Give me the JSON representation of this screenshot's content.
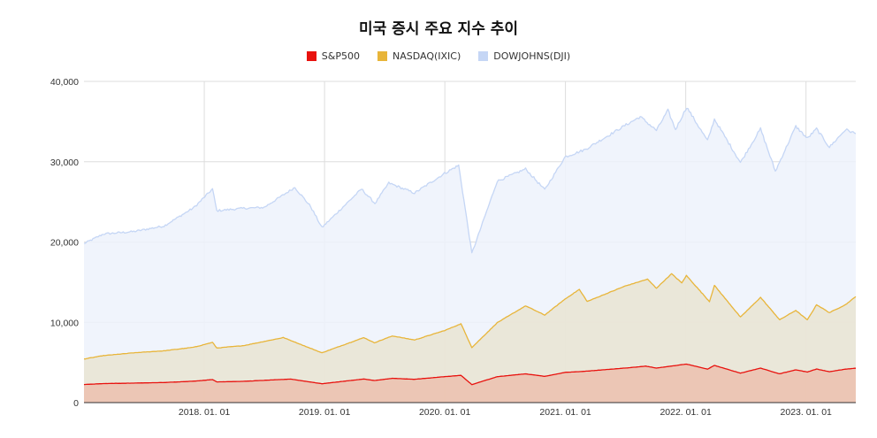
{
  "chart_data": {
    "type": "area",
    "title": "미국 증시 주요 지수 추이",
    "xlabel": "",
    "ylabel": "",
    "x_ticks": [
      "2018. 01. 01",
      "2019. 01. 01",
      "2020. 01. 01",
      "2021. 01. 01",
      "2022. 01. 01",
      "2023. 01. 01"
    ],
    "y_ticks": [
      "0",
      "10,000",
      "20,000",
      "30,000",
      "40,000"
    ],
    "ylim": [
      0,
      40000
    ],
    "xlim": [
      "2017-01-01",
      "2023-06-01"
    ],
    "grid": true,
    "legend_position": "top",
    "stacked": false,
    "series": [
      {
        "name": "S&P500",
        "color": "#e8120e",
        "fill": "#ecc0ae",
        "points": [
          [
            "2017-01-01",
            2250
          ],
          [
            "2017-03-01",
            2370
          ],
          [
            "2017-06-01",
            2430
          ],
          [
            "2017-09-01",
            2500
          ],
          [
            "2017-12-01",
            2670
          ],
          [
            "2018-01-26",
            2870
          ],
          [
            "2018-02-08",
            2580
          ],
          [
            "2018-05-01",
            2650
          ],
          [
            "2018-09-20",
            2930
          ],
          [
            "2018-12-24",
            2350
          ],
          [
            "2019-04-30",
            2940
          ],
          [
            "2019-06-01",
            2750
          ],
          [
            "2019-07-26",
            3020
          ],
          [
            "2019-10-01",
            2900
          ],
          [
            "2019-12-31",
            3230
          ],
          [
            "2020-02-19",
            3390
          ],
          [
            "2020-03-23",
            2240
          ],
          [
            "2020-06-08",
            3230
          ],
          [
            "2020-09-02",
            3580
          ],
          [
            "2020-10-30",
            3270
          ],
          [
            "2020-12-31",
            3760
          ],
          [
            "2021-03-01",
            3900
          ],
          [
            "2021-06-30",
            4300
          ],
          [
            "2021-09-02",
            4540
          ],
          [
            "2021-10-04",
            4300
          ],
          [
            "2022-01-03",
            4800
          ],
          [
            "2022-03-08",
            4170
          ],
          [
            "2022-03-29",
            4630
          ],
          [
            "2022-06-16",
            3670
          ],
          [
            "2022-08-16",
            4300
          ],
          [
            "2022-10-12",
            3580
          ],
          [
            "2022-12-01",
            4080
          ],
          [
            "2023-01-05",
            3810
          ],
          [
            "2023-02-02",
            4180
          ],
          [
            "2023-03-13",
            3850
          ],
          [
            "2023-05-01",
            4170
          ],
          [
            "2023-06-01",
            4280
          ]
        ]
      },
      {
        "name": "NASDAQ(IXIC)",
        "color": "#e8b53a",
        "fill": "#e9e4d2",
        "points": [
          [
            "2017-01-01",
            5430
          ],
          [
            "2017-03-01",
            5850
          ],
          [
            "2017-06-01",
            6200
          ],
          [
            "2017-09-01",
            6450
          ],
          [
            "2017-12-01",
            6900
          ],
          [
            "2018-01-26",
            7500
          ],
          [
            "2018-02-08",
            6800
          ],
          [
            "2018-05-01",
            7100
          ],
          [
            "2018-08-29",
            8100
          ],
          [
            "2018-12-24",
            6200
          ],
          [
            "2019-04-30",
            8100
          ],
          [
            "2019-06-01",
            7450
          ],
          [
            "2019-07-26",
            8300
          ],
          [
            "2019-10-01",
            7800
          ],
          [
            "2019-12-31",
            8970
          ],
          [
            "2020-02-19",
            9820
          ],
          [
            "2020-03-23",
            6860
          ],
          [
            "2020-06-08",
            9950
          ],
          [
            "2020-09-02",
            12050
          ],
          [
            "2020-10-30",
            10900
          ],
          [
            "2020-12-31",
            12900
          ],
          [
            "2021-02-12",
            14100
          ],
          [
            "2021-03-08",
            12600
          ],
          [
            "2021-06-30",
            14500
          ],
          [
            "2021-09-07",
            15370
          ],
          [
            "2021-10-04",
            14250
          ],
          [
            "2021-11-19",
            16050
          ],
          [
            "2021-12-20",
            14900
          ],
          [
            "2022-01-03",
            15830
          ],
          [
            "2022-03-14",
            12580
          ],
          [
            "2022-03-29",
            14600
          ],
          [
            "2022-06-16",
            10650
          ],
          [
            "2022-08-16",
            13100
          ],
          [
            "2022-10-13",
            10320
          ],
          [
            "2022-12-01",
            11480
          ],
          [
            "2023-01-05",
            10300
          ],
          [
            "2023-02-02",
            12200
          ],
          [
            "2023-03-13",
            11200
          ],
          [
            "2023-05-01",
            12200
          ],
          [
            "2023-06-01",
            13200
          ]
        ]
      },
      {
        "name": "DOWJOHNS(DJI)",
        "color": "#c5d6f5",
        "fill": "#edf2fc",
        "points": [
          [
            "2017-01-01",
            19800
          ],
          [
            "2017-03-01",
            21000
          ],
          [
            "2017-06-01",
            21300
          ],
          [
            "2017-09-01",
            22000
          ],
          [
            "2017-12-01",
            24300
          ],
          [
            "2018-01-26",
            26600
          ],
          [
            "2018-02-08",
            23900
          ],
          [
            "2018-05-01",
            24200
          ],
          [
            "2018-07-01",
            24300
          ],
          [
            "2018-10-03",
            26800
          ],
          [
            "2018-11-20",
            24400
          ],
          [
            "2018-12-24",
            21800
          ],
          [
            "2019-04-23",
            26600
          ],
          [
            "2019-06-03",
            24800
          ],
          [
            "2019-07-15",
            27350
          ],
          [
            "2019-10-01",
            26100
          ],
          [
            "2019-12-31",
            28540
          ],
          [
            "2020-02-12",
            29550
          ],
          [
            "2020-03-23",
            18590
          ],
          [
            "2020-06-08",
            27570
          ],
          [
            "2020-09-02",
            29100
          ],
          [
            "2020-10-30",
            26500
          ],
          [
            "2020-12-31",
            30600
          ],
          [
            "2021-03-01",
            31500
          ],
          [
            "2021-06-30",
            34500
          ],
          [
            "2021-08-16",
            35600
          ],
          [
            "2021-10-04",
            33900
          ],
          [
            "2021-11-08",
            36400
          ],
          [
            "2021-12-01",
            34000
          ],
          [
            "2022-01-04",
            36800
          ],
          [
            "2022-03-08",
            32600
          ],
          [
            "2022-03-29",
            35300
          ],
          [
            "2022-06-16",
            29900
          ],
          [
            "2022-08-16",
            34100
          ],
          [
            "2022-09-30",
            28800
          ],
          [
            "2022-12-01",
            34400
          ],
          [
            "2023-01-05",
            32900
          ],
          [
            "2023-02-02",
            34100
          ],
          [
            "2023-03-13",
            31800
          ],
          [
            "2023-05-01",
            34000
          ],
          [
            "2023-06-01",
            33500
          ]
        ]
      }
    ]
  }
}
